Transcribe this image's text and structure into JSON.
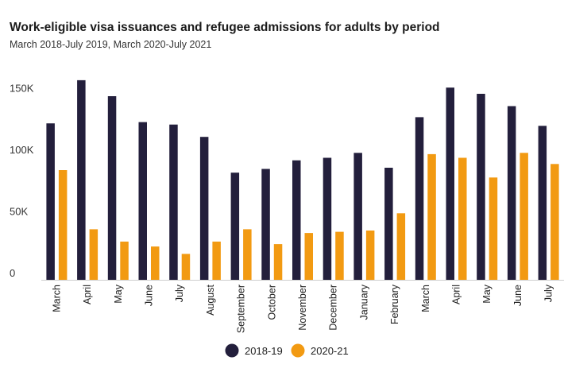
{
  "chart_data": {
    "type": "bar",
    "title": "Work-eligible visa issuances and refugee admissions for adults by period",
    "subtitle": "March 2018-July 2019, March 2020-July 2021",
    "xlabel": "",
    "ylabel": "",
    "ylim": [
      0,
      160000
    ],
    "yticks": [
      {
        "value": 0,
        "label": "0"
      },
      {
        "value": 50000,
        "label": "50K"
      },
      {
        "value": 100000,
        "label": "100K"
      },
      {
        "value": 150000,
        "label": "150K"
      }
    ],
    "grid": false,
    "legend_position": "bottom",
    "categories": [
      "March",
      "April",
      "May",
      "June",
      "July",
      "August",
      "September",
      "October",
      "November",
      "December",
      "January",
      "February",
      "March",
      "April",
      "May",
      "June",
      "July"
    ],
    "series": [
      {
        "name": "2018-19",
        "color": "#231f3c",
        "values": [
          127000,
          162000,
          149000,
          128000,
          126000,
          116000,
          87000,
          90000,
          97000,
          99000,
          103000,
          91000,
          132000,
          156000,
          151000,
          141000,
          125000
        ]
      },
      {
        "name": "2020-21",
        "color": "#f29a12",
        "values": [
          89000,
          41000,
          31000,
          27000,
          21000,
          31000,
          41000,
          29000,
          38000,
          39000,
          40000,
          54000,
          102000,
          99000,
          83000,
          103000,
          94000
        ]
      }
    ]
  }
}
